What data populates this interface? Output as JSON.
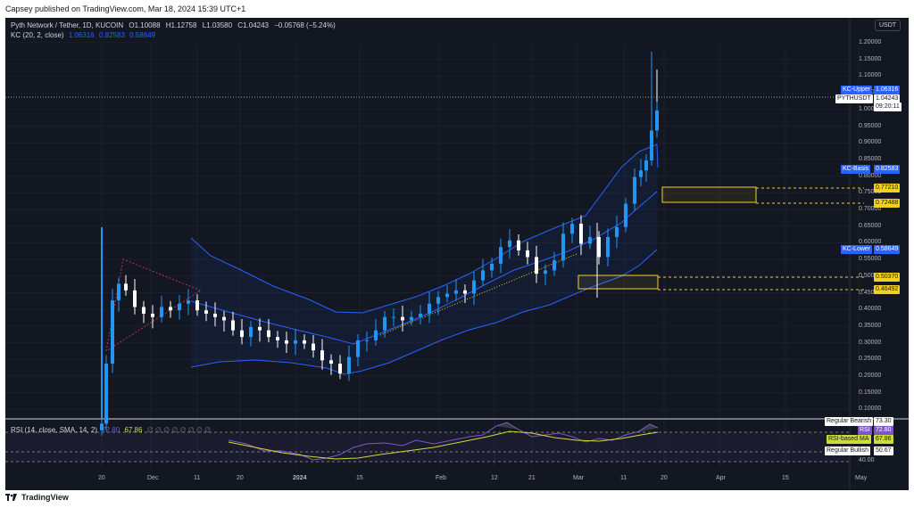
{
  "header": {
    "published_line": "Capsey published on TradingView.com, Mar 18, 2024 15:39 UTC+1"
  },
  "brand": {
    "name": "TradingView"
  },
  "symbol": {
    "title": "Pyth Network / Tether, 1D, KUCOIN",
    "open_label": "O",
    "open": "1.10088",
    "high_label": "H",
    "high": "1.12758",
    "low_label": "L",
    "low": "1.03580",
    "close_label": "C",
    "close": "1.04243",
    "change": "−0.05768 (−5.24%)"
  },
  "kc": {
    "title": "KC (20, 2, close)",
    "upper": "1.06316",
    "basis": "0.82583",
    "lower": "0.58649"
  },
  "rsi": {
    "title": "RSI (14, close, SMA, 14, 2)",
    "rsi": "72.80",
    "ma": "67.86",
    "placeholders": "∅ ∅ ∅ ∅ ∅ ∅ ∅ ∅"
  },
  "currency_button": "USDT",
  "price_axis": [
    "1.20000",
    "1.15000",
    "1.10000",
    "1.05000",
    "1.00000",
    "0.95000",
    "0.90000",
    "0.85000",
    "0.80000",
    "0.75000",
    "0.70000",
    "0.65000",
    "0.60000",
    "0.55000",
    "0.50000",
    "0.45000",
    "0.40000",
    "0.35000",
    "0.30000",
    "0.25000",
    "0.20000",
    "0.15000",
    "0.10000"
  ],
  "rsi_axis": [
    "40.00"
  ],
  "time_axis": [
    "20",
    "Dec",
    "11",
    "20",
    "2024",
    "15",
    "Feb",
    "12",
    "21",
    "Mar",
    "11",
    "20",
    "Apr",
    "15",
    "May"
  ],
  "price_tags": {
    "kc_upper": {
      "label": "KC-Upper",
      "value": "1.06316"
    },
    "symbol": {
      "label": "PYTHUSDT",
      "value": "1.04243",
      "countdown": "09:20:11"
    },
    "kc_basis": {
      "label": "KC-Basis",
      "value": "0.82583"
    },
    "kc_lower": {
      "label": "KC-Lower",
      "value": "0.58649"
    },
    "level_1": "0.77210",
    "level_2": "0.72488",
    "level_3": "0.50370",
    "level_4": "0.46492"
  },
  "rsi_tags": {
    "bearish": {
      "label": "Regular Bearish",
      "value": "73.30"
    },
    "rsi": {
      "label": "RSI",
      "value": "72.80"
    },
    "ma": {
      "label": "RSI-based MA",
      "value": "67.86"
    },
    "bullish": {
      "label": "Regular Bullish",
      "value": "50.67"
    }
  },
  "colors": {
    "background": "#131722",
    "up": "#2196f3",
    "down": "#ffffff",
    "channel": "#2962ff",
    "rsi_line": "#7e57c2",
    "rsi_ma": "#cddc39",
    "highlight": "#f0d020",
    "text": "#d1d4dc"
  }
}
